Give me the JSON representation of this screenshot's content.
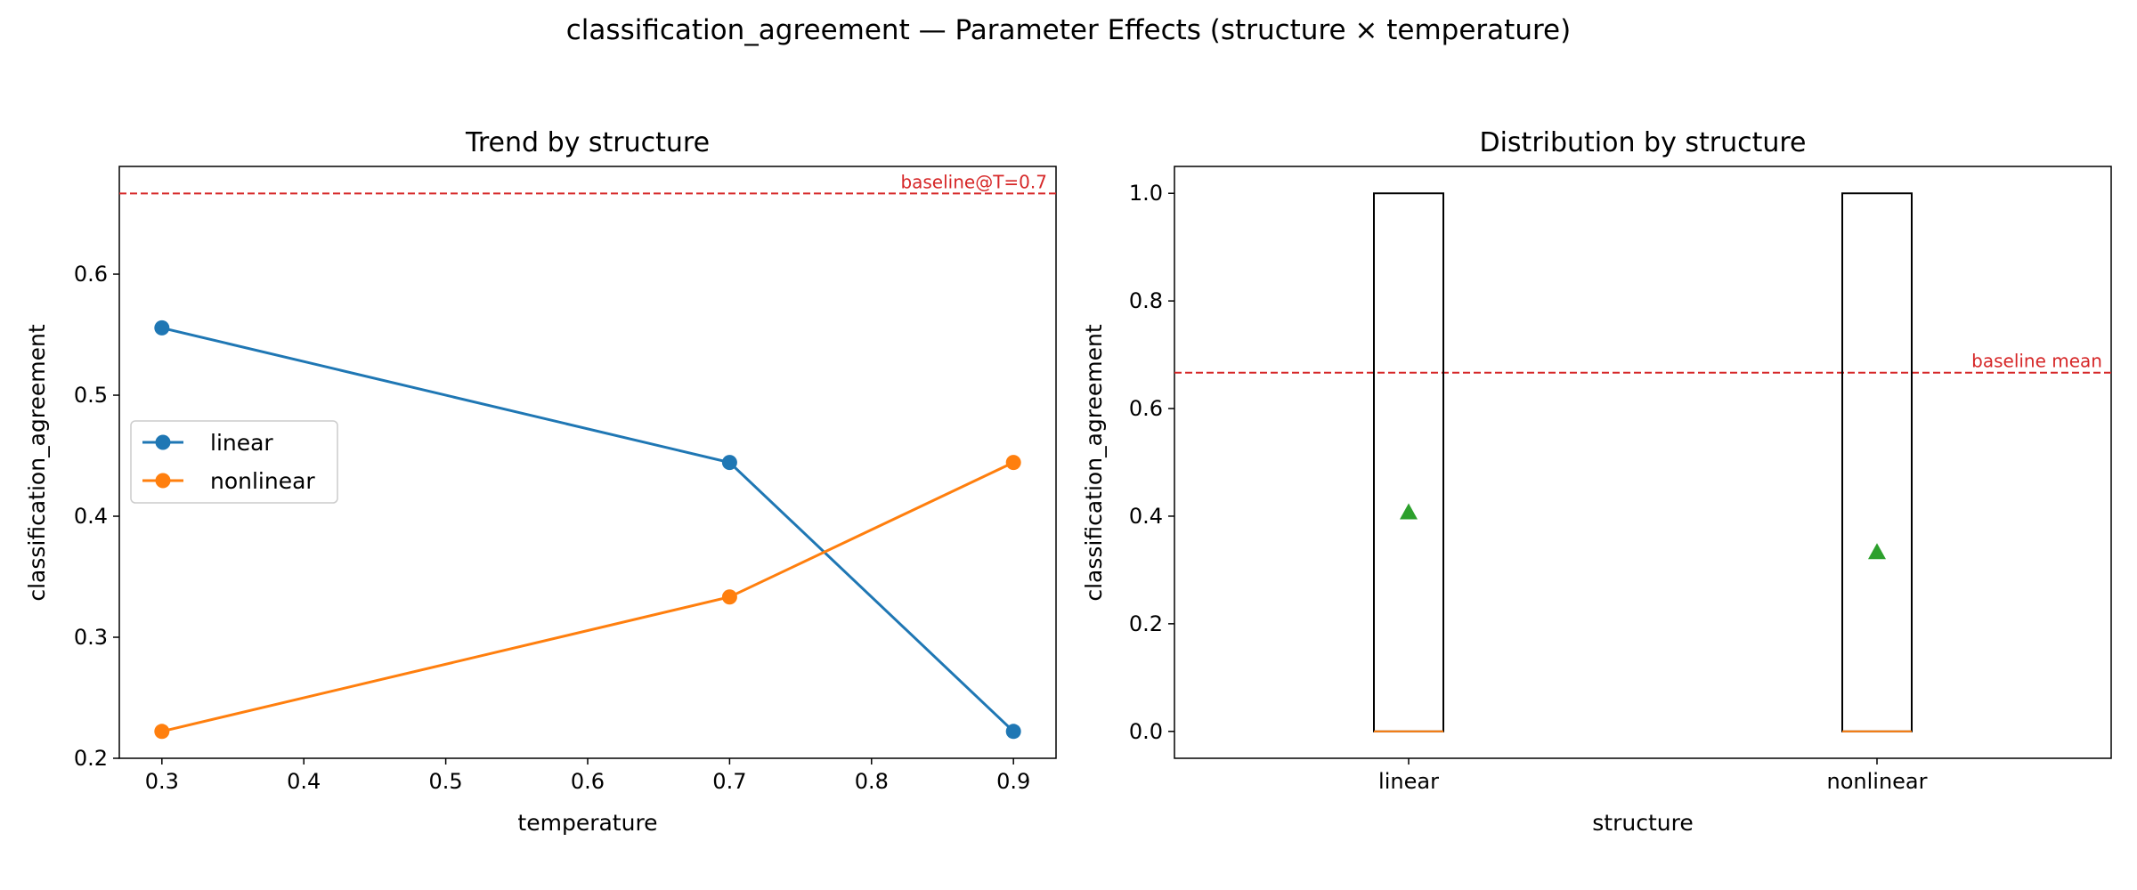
{
  "figure": {
    "suptitle": "classification_agreement — Parameter Effects (structure × temperature)"
  },
  "chart_data": [
    {
      "type": "line",
      "title": "Trend by structure",
      "xlabel": "temperature",
      "ylabel": "classification_agreement",
      "x": [
        0.3,
        0.7,
        0.9
      ],
      "xticks": [
        "0.3",
        "0.4",
        "0.5",
        "0.6",
        "0.7",
        "0.8",
        "0.9"
      ],
      "yticks": [
        "0.2",
        "0.3",
        "0.4",
        "0.5",
        "0.6"
      ],
      "xlim": [
        0.27,
        0.93
      ],
      "ylim": [
        0.2,
        0.689
      ],
      "series": [
        {
          "name": "linear",
          "values": [
            0.5556,
            0.4444,
            0.2222
          ],
          "color": "#1f77b4"
        },
        {
          "name": "nonlinear",
          "values": [
            0.2222,
            0.3333,
            0.4444
          ],
          "color": "#ff7f0e"
        }
      ],
      "baseline": {
        "value": 0.6667,
        "label": "baseline@T=0.7",
        "color": "#d62728"
      },
      "legend": "center-left",
      "grid": false
    },
    {
      "type": "box",
      "title": "Distribution by structure",
      "xlabel": "structure",
      "ylabel": "classification_agreement",
      "categories": [
        "linear",
        "nonlinear"
      ],
      "yticks": [
        "0.0",
        "0.2",
        "0.4",
        "0.6",
        "0.8",
        "1.0"
      ],
      "ylim": [
        -0.05,
        1.05
      ],
      "boxes": [
        {
          "category": "linear",
          "q1": 0.0,
          "median": 0.0,
          "q3": 1.0,
          "mean": 0.4074
        },
        {
          "category": "nonlinear",
          "q1": 0.0,
          "median": 0.0,
          "q3": 1.0,
          "mean": 0.3333
        }
      ],
      "median_color": "#ff7f0e",
      "mean_color": "#2ca02c",
      "baseline": {
        "value": 0.6667,
        "label": "baseline mean",
        "color": "#d62728"
      },
      "grid": false
    }
  ]
}
